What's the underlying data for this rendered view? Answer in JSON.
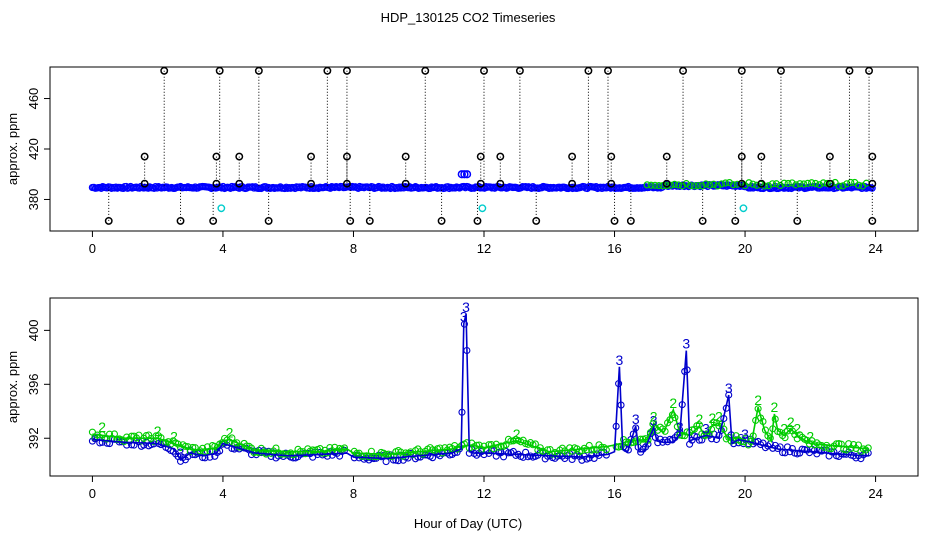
{
  "title": "HDP_130125  CO2 Timeseries",
  "xlabel": "Hour of Day (UTC)",
  "chart_data": [
    {
      "type": "scatter",
      "ylabel": "approx. ppm",
      "xlim": [
        -1.3,
        25.3
      ],
      "ylim": [
        355,
        485
      ],
      "xticks": [
        0,
        4,
        8,
        12,
        16,
        20,
        24
      ],
      "yticks": [
        380,
        420,
        460
      ],
      "colors": {
        "flagged": "#000000",
        "blue": "#0000ff",
        "green": "#00cc00",
        "cyan": "#00cccc"
      },
      "baseline": 389.5,
      "flag_high_value": 482,
      "flag_high_hours": [
        2.2,
        3.9,
        5.1,
        7.2,
        7.8,
        10.2,
        12.0,
        13.1,
        15.2,
        15.8,
        18.1,
        19.9,
        21.1,
        23.2,
        23.8
      ],
      "flag_mid_value": 414,
      "flag_mid_hours": [
        1.6,
        3.8,
        4.5,
        6.7,
        7.8,
        9.6,
        11.9,
        12.5,
        14.7,
        15.9,
        17.6,
        19.9,
        20.5,
        22.6,
        23.9
      ],
      "flag_low_value": 363,
      "flag_low_hours": [
        0.5,
        2.7,
        3.7,
        5.4,
        7.9,
        8.5,
        10.7,
        11.8,
        13.6,
        16.0,
        16.5,
        18.7,
        19.7,
        21.6,
        23.9
      ],
      "cyan_points": [
        {
          "x": 3.95,
          "y": 373
        },
        {
          "x": 11.95,
          "y": 373
        },
        {
          "x": 19.95,
          "y": 373
        }
      ],
      "blue_bump": {
        "x": 11.4,
        "y": 400
      }
    },
    {
      "type": "line",
      "ylabel": "approx. ppm",
      "xlim": [
        -1.3,
        25.3
      ],
      "ylim": [
        389.2,
        402.4
      ],
      "xticks": [
        0,
        4,
        8,
        12,
        16,
        20,
        24
      ],
      "yticks": [
        392,
        396,
        400
      ],
      "series": [
        {
          "label_char": "3",
          "color": "#0000cc",
          "x": [
            0,
            1,
            2,
            2.5,
            2.7,
            3,
            3.4,
            3.8,
            4.0,
            5,
            6,
            7,
            7.8,
            8.0,
            9,
            10,
            11,
            11.3,
            11.38,
            11.45,
            11.55,
            11.7,
            12.0,
            13,
            14,
            15,
            15.8,
            16.0,
            16.15,
            16.25,
            16.4,
            16.65,
            16.75,
            16.9,
            17.2,
            17.3,
            17.5,
            17.8,
            18.0,
            18.2,
            18.3,
            18.5,
            18.8,
            19.2,
            19.5,
            19.6,
            19.8,
            20.0,
            21,
            22,
            23,
            23.8
          ],
          "y": [
            391.9,
            391.7,
            391.6,
            391.2,
            390.4,
            390.9,
            390.7,
            390.9,
            391.6,
            390.9,
            390.7,
            390.8,
            390.9,
            390.6,
            390.5,
            390.7,
            390.9,
            391.2,
            400.5,
            401.2,
            391.0,
            390.9,
            390.9,
            390.8,
            390.7,
            390.6,
            390.8,
            391.0,
            397.3,
            391.2,
            391.0,
            392.9,
            391.0,
            391.0,
            392.8,
            391.8,
            391.7,
            391.7,
            392.3,
            398.5,
            391.8,
            392.0,
            392.2,
            392.0,
            395.2,
            391.6,
            391.9,
            391.8,
            391.2,
            391.0,
            390.8,
            390.7
          ],
          "labels": [
            {
              "x": 11.38,
              "y": 400.5,
              "t": "3"
            },
            {
              "x": 11.45,
              "y": 401.2,
              "t": "3"
            },
            {
              "x": 16.15,
              "y": 397.3,
              "t": "3"
            },
            {
              "x": 16.65,
              "y": 392.9,
              "t": "3"
            },
            {
              "x": 17.2,
              "y": 392.8,
              "t": "3"
            },
            {
              "x": 18.0,
              "y": 392.3,
              "t": "3"
            },
            {
              "x": 18.2,
              "y": 398.5,
              "t": "3"
            },
            {
              "x": 18.8,
              "y": 392.2,
              "t": "3"
            },
            {
              "x": 19.5,
              "y": 395.2,
              "t": "3"
            },
            {
              "x": 20.0,
              "y": 391.8,
              "t": "3"
            },
            {
              "x": 2.7,
              "y": 390.4,
              "t": "3"
            }
          ]
        },
        {
          "label_char": "2",
          "color": "#00cc00",
          "x": [
            0,
            1,
            2,
            2.5,
            3,
            3.4,
            3.8,
            4.0,
            4.2,
            5,
            6,
            7,
            7.8,
            8.0,
            9,
            10,
            11,
            11.3,
            11.6,
            12.0,
            13,
            14,
            15,
            15.8,
            16.0,
            16.5,
            17.0,
            17.2,
            17.5,
            17.8,
            18.0,
            18.3,
            18.6,
            18.8,
            19.0,
            19.2,
            19.5,
            19.8,
            20.0,
            20.2,
            20.4,
            20.6,
            20.8,
            20.9,
            21.0,
            21.2,
            21.4,
            21.6,
            22,
            23,
            23.8
          ],
          "y": [
            392.3,
            392.0,
            392.0,
            391.6,
            391.2,
            391.1,
            391.3,
            391.8,
            391.9,
            391.1,
            391.0,
            391.0,
            391.2,
            390.9,
            390.8,
            391.0,
            391.2,
            391.4,
            391.5,
            391.3,
            391.8,
            391.0,
            391.2,
            391.4,
            391.5,
            391.8,
            391.9,
            393.1,
            392.4,
            394.1,
            392.4,
            392.2,
            392.9,
            392.0,
            393.0,
            393.1,
            391.9,
            392.1,
            391.8,
            391.7,
            394.3,
            392.6,
            391.8,
            393.8,
            392.6,
            392.2,
            392.7,
            392.2,
            391.6,
            391.4,
            391.2
          ],
          "labels": [
            {
              "x": 0.3,
              "y": 392.3,
              "t": "2"
            },
            {
              "x": 2.0,
              "y": 392.0,
              "t": "2"
            },
            {
              "x": 2.5,
              "y": 391.6,
              "t": "2"
            },
            {
              "x": 4.2,
              "y": 391.9,
              "t": "2"
            },
            {
              "x": 13.0,
              "y": 391.8,
              "t": "2"
            },
            {
              "x": 17.2,
              "y": 393.1,
              "t": "2"
            },
            {
              "x": 17.8,
              "y": 394.1,
              "t": "2"
            },
            {
              "x": 18.6,
              "y": 392.9,
              "t": "2"
            },
            {
              "x": 19.0,
              "y": 393.0,
              "t": "2"
            },
            {
              "x": 19.2,
              "y": 393.1,
              "t": "2"
            },
            {
              "x": 20.4,
              "y": 394.3,
              "t": "2"
            },
            {
              "x": 20.9,
              "y": 393.8,
              "t": "2"
            },
            {
              "x": 21.2,
              "y": 392.2,
              "t": "2"
            },
            {
              "x": 21.4,
              "y": 392.7,
              "t": "2"
            },
            {
              "x": 21.6,
              "y": 392.2,
              "t": "2"
            },
            {
              "x": 22.0,
              "y": 391.6,
              "t": "2"
            }
          ]
        }
      ],
      "point_dense_gaps": [
        [
          7.8,
          8.0
        ],
        [
          15.8,
          16.0
        ]
      ]
    }
  ]
}
